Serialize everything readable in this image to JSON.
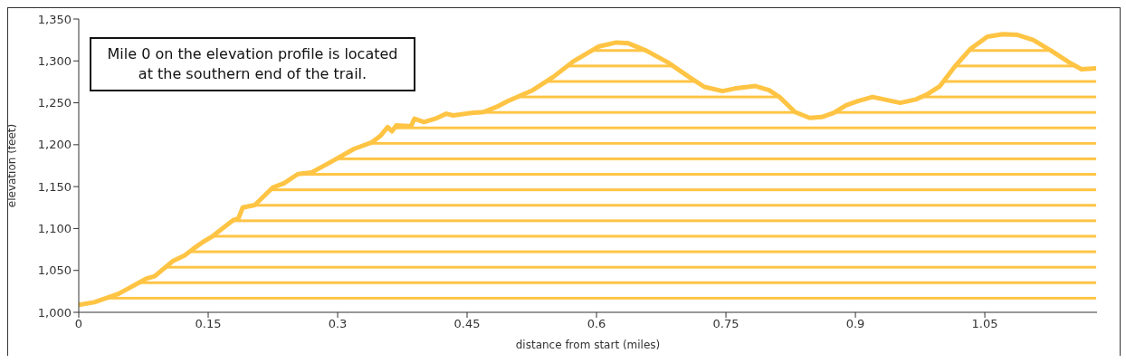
{
  "chart_data": {
    "type": "area",
    "xlabel": "distance from start (miles)",
    "ylabel": "elevation (feet)",
    "annotations": [
      "Mile 0 on the elevation profile is located at the southern end of the trail."
    ],
    "xlim": [
      0,
      1.18
    ],
    "xticks": [
      0,
      0.15,
      0.3,
      0.45,
      0.6,
      0.75,
      0.9,
      1.05
    ],
    "ylim": [
      1000,
      1350
    ],
    "yticks": [
      {
        "value": 1000,
        "label": "1,000"
      },
      {
        "value": 1050,
        "label": "1,050"
      },
      {
        "value": 1100,
        "label": "1,100"
      },
      {
        "value": 1150,
        "label": "1,150"
      },
      {
        "value": 1200,
        "label": "1,200"
      },
      {
        "value": 1250,
        "label": "1,250"
      },
      {
        "value": 1300,
        "label": "1,300"
      },
      {
        "value": 1350,
        "label": "1,350"
      }
    ],
    "grid": false,
    "legend": false,
    "x": [
      0,
      0.018,
      0.046,
      0.078,
      0.088,
      0.109,
      0.123,
      0.133,
      0.144,
      0.154,
      0.179,
      0.185,
      0.19,
      0.204,
      0.225,
      0.238,
      0.254,
      0.27,
      0.288,
      0.319,
      0.34,
      0.35,
      0.358,
      0.363,
      0.368,
      0.385,
      0.389,
      0.4,
      0.413,
      0.426,
      0.434,
      0.455,
      0.469,
      0.484,
      0.497,
      0.526,
      0.55,
      0.574,
      0.602,
      0.623,
      0.637,
      0.658,
      0.683,
      0.707,
      0.725,
      0.746,
      0.76,
      0.784,
      0.8,
      0.812,
      0.83,
      0.847,
      0.861,
      0.875,
      0.889,
      0.903,
      0.92,
      0.952,
      0.97,
      0.983,
      0.998,
      1.015,
      1.033,
      1.053,
      1.071,
      1.088,
      1.106,
      1.127,
      1.148,
      1.162,
      1.179
    ],
    "series": [
      {
        "color": "#ffc444",
        "values": [
          1009,
          1012,
          1022,
          1040,
          1043,
          1061,
          1068,
          1076,
          1084,
          1090,
          1110,
          1112,
          1125,
          1128,
          1149,
          1154,
          1165,
          1167,
          1177,
          1195,
          1203,
          1211,
          1221,
          1216,
          1223,
          1222,
          1231,
          1227,
          1231,
          1237,
          1235,
          1238,
          1239,
          1245,
          1252,
          1265,
          1281,
          1300,
          1317,
          1322,
          1321,
          1312,
          1298,
          1281,
          1269,
          1264,
          1267,
          1270,
          1265,
          1257,
          1239,
          1232,
          1233,
          1238,
          1247,
          1252,
          1257,
          1250,
          1254,
          1260,
          1270,
          1293,
          1314,
          1329,
          1332,
          1331,
          1325,
          1312,
          1298,
          1290,
          1291
        ]
      }
    ]
  }
}
